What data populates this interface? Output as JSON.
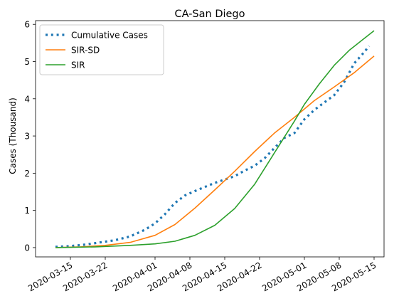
{
  "chart_data": {
    "type": "line",
    "title": "CA-San Diego",
    "xlabel": "",
    "ylabel": "Cases (Thousand)",
    "ylim": [
      -0.25,
      6.1
    ],
    "xlim": [
      "2020-03-08",
      "2020-05-17"
    ],
    "x_ticks": [
      "2020-03-15",
      "2020-03-22",
      "2020-04-01",
      "2020-04-08",
      "2020-04-15",
      "2020-04-22",
      "2020-05-01",
      "2020-05-08",
      "2020-05-15"
    ],
    "y_ticks": [
      0,
      1,
      2,
      3,
      4,
      5,
      6
    ],
    "legend_position": "upper-left",
    "grid": false,
    "series": [
      {
        "name": "Cumulative Cases",
        "color": "#1f77b4",
        "style": "dotted",
        "points": [
          [
            "2020-03-12",
            0.02
          ],
          [
            "2020-03-15",
            0.04
          ],
          [
            "2020-03-18",
            0.08
          ],
          [
            "2020-03-21",
            0.14
          ],
          [
            "2020-03-24",
            0.2
          ],
          [
            "2020-03-27",
            0.3
          ],
          [
            "2020-03-30",
            0.48
          ],
          [
            "2020-04-01",
            0.65
          ],
          [
            "2020-04-03",
            0.9
          ],
          [
            "2020-04-05",
            1.2
          ],
          [
            "2020-04-07",
            1.4
          ],
          [
            "2020-04-09",
            1.52
          ],
          [
            "2020-04-11",
            1.63
          ],
          [
            "2020-04-13",
            1.74
          ],
          [
            "2020-04-15",
            1.83
          ],
          [
            "2020-04-17",
            1.92
          ],
          [
            "2020-04-19",
            2.07
          ],
          [
            "2020-04-21",
            2.2
          ],
          [
            "2020-04-23",
            2.4
          ],
          [
            "2020-04-25",
            2.68
          ],
          [
            "2020-04-27",
            2.95
          ],
          [
            "2020-04-29",
            3.08
          ],
          [
            "2020-05-01",
            3.45
          ],
          [
            "2020-05-03",
            3.7
          ],
          [
            "2020-05-05",
            3.9
          ],
          [
            "2020-05-07",
            4.1
          ],
          [
            "2020-05-09",
            4.45
          ],
          [
            "2020-05-11",
            4.95
          ],
          [
            "2020-05-13",
            5.25
          ],
          [
            "2020-05-14",
            5.42
          ]
        ]
      },
      {
        "name": "SIR-SD",
        "color": "#ff7f0e",
        "style": "solid",
        "points": [
          [
            "2020-03-12",
            0.0
          ],
          [
            "2020-03-17",
            0.02
          ],
          [
            "2020-03-22",
            0.06
          ],
          [
            "2020-03-27",
            0.14
          ],
          [
            "2020-04-01",
            0.33
          ],
          [
            "2020-04-05",
            0.62
          ],
          [
            "2020-04-09",
            1.06
          ],
          [
            "2020-04-13",
            1.55
          ],
          [
            "2020-04-17",
            2.05
          ],
          [
            "2020-04-21",
            2.58
          ],
          [
            "2020-04-25",
            3.08
          ],
          [
            "2020-04-29",
            3.5
          ],
          [
            "2020-05-03",
            3.95
          ],
          [
            "2020-05-07",
            4.32
          ],
          [
            "2020-05-11",
            4.7
          ],
          [
            "2020-05-15",
            5.15
          ]
        ]
      },
      {
        "name": "SIR",
        "color": "#2ca02c",
        "style": "solid",
        "points": [
          [
            "2020-03-12",
            0.0
          ],
          [
            "2020-03-20",
            0.02
          ],
          [
            "2020-03-27",
            0.06
          ],
          [
            "2020-04-01",
            0.1
          ],
          [
            "2020-04-05",
            0.17
          ],
          [
            "2020-04-09",
            0.33
          ],
          [
            "2020-04-13",
            0.6
          ],
          [
            "2020-04-17",
            1.05
          ],
          [
            "2020-04-21",
            1.7
          ],
          [
            "2020-04-25",
            2.55
          ],
          [
            "2020-04-29",
            3.4
          ],
          [
            "2020-05-01",
            3.85
          ],
          [
            "2020-05-04",
            4.4
          ],
          [
            "2020-05-07",
            4.9
          ],
          [
            "2020-05-10",
            5.3
          ],
          [
            "2020-05-13",
            5.62
          ],
          [
            "2020-05-15",
            5.83
          ]
        ]
      }
    ]
  }
}
